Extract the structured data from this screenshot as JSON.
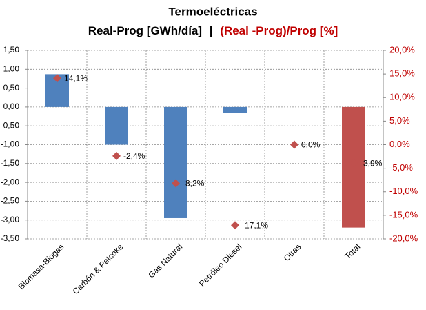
{
  "chart_data": {
    "type": "bar",
    "title": "Termoeléctricas",
    "y_label": "Real-Prog [GWh/día]",
    "separator": "|",
    "y2_label": "(Real -Prog)/Prog [%]",
    "categories": [
      "Biomasa-Biogas",
      "Carbón & Petcoke",
      "Gas Natural",
      "Petróleo Diesel",
      "Otras",
      "Total"
    ],
    "series": [
      {
        "type": "bar",
        "color": "#4f81bd",
        "colors": [
          "#4f81bd",
          "#4f81bd",
          "#4f81bd",
          "#4f81bd",
          "#4f81bd",
          "#c0504d"
        ],
        "values": [
          0.87,
          -1.0,
          -2.95,
          -0.15,
          0,
          -3.2
        ]
      },
      {
        "type": "scatter",
        "axis": "y2",
        "color": "#c0504d",
        "values": [
          14.1,
          -2.4,
          -8.2,
          -17.1,
          0.0,
          -3.9
        ],
        "value_labels": [
          "14,1%",
          "-2,4%",
          "-8,2%",
          "-17,1%",
          "0,0%",
          "-3,9%"
        ]
      }
    ],
    "ylim": [
      -3.5,
      1.5
    ],
    "yticks": [
      {
        "value": 1.5,
        "label": "1,50"
      },
      {
        "value": 1.0,
        "label": "1,00"
      },
      {
        "value": 0.5,
        "label": "0,50"
      },
      {
        "value": 0,
        "label": "0,00"
      },
      {
        "value": -0.5,
        "label": "-0,50"
      },
      {
        "value": -1.0,
        "label": "-1,00"
      },
      {
        "value": -1.5,
        "label": "-1,50"
      },
      {
        "value": -2.0,
        "label": "-2,00"
      },
      {
        "value": -2.5,
        "label": "-2,50"
      },
      {
        "value": -3.0,
        "label": "-3,00"
      },
      {
        "value": -3.5,
        "label": "-3,50"
      }
    ],
    "y2lim": [
      -20,
      20
    ],
    "y2ticks": [
      {
        "value": 20,
        "label": "20,0%"
      },
      {
        "value": 15,
        "label": "15,0%"
      },
      {
        "value": 10,
        "label": "10,0%"
      },
      {
        "value": 5,
        "label": "5,0%"
      },
      {
        "value": 0,
        "label": "0,0%"
      },
      {
        "value": -5,
        "label": "-5,0%"
      },
      {
        "value": -10,
        "label": "-10,0%"
      },
      {
        "value": -15,
        "label": "-15,0%"
      },
      {
        "value": -20,
        "label": "-20,0%"
      }
    ],
    "grid": true
  }
}
